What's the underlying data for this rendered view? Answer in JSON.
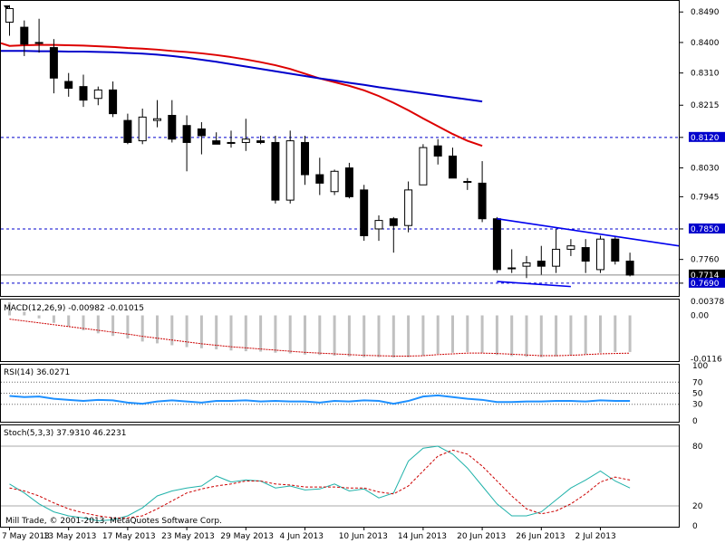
{
  "chart_data": [
    {
      "type": "candlestick",
      "panel": "price",
      "ylim": [
        0.7655,
        0.852
      ],
      "y_ticks": [
        "0.8490",
        "0.8400",
        "0.8310",
        "0.8215",
        "0.8120",
        "0.8030",
        "0.7945",
        "0.7850",
        "0.7760",
        "0.7690"
      ],
      "y_tick_values": [
        0.849,
        0.84,
        0.831,
        0.8215,
        0.812,
        0.803,
        0.7945,
        0.785,
        0.776,
        0.769
      ],
      "price_labels": [
        {
          "text": "0.8120",
          "value": 0.812,
          "color": "#0000cc"
        },
        {
          "text": "0.7850",
          "value": 0.785,
          "color": "#0000cc"
        },
        {
          "text": "0.7714",
          "value": 0.7714,
          "color": "#000000"
        },
        {
          "text": "0.7690",
          "value": 0.769,
          "color": "#0000cc"
        }
      ],
      "hlines_dashed": [
        0.812,
        0.785,
        0.769
      ],
      "hline_current": 0.7714,
      "candles": [
        {
          "o": 0.846,
          "h": 0.851,
          "l": 0.842,
          "c": 0.85
        },
        {
          "o": 0.8445,
          "h": 0.8465,
          "l": 0.836,
          "c": 0.8395
        },
        {
          "o": 0.84,
          "h": 0.847,
          "l": 0.837,
          "c": 0.84
        },
        {
          "o": 0.8385,
          "h": 0.841,
          "l": 0.825,
          "c": 0.8295
        },
        {
          "o": 0.8285,
          "h": 0.831,
          "l": 0.824,
          "c": 0.8265
        },
        {
          "o": 0.827,
          "h": 0.8305,
          "l": 0.821,
          "c": 0.823
        },
        {
          "o": 0.8235,
          "h": 0.827,
          "l": 0.8215,
          "c": 0.826
        },
        {
          "o": 0.826,
          "h": 0.8285,
          "l": 0.818,
          "c": 0.819
        },
        {
          "o": 0.817,
          "h": 0.819,
          "l": 0.81,
          "c": 0.8105
        },
        {
          "o": 0.811,
          "h": 0.8205,
          "l": 0.81,
          "c": 0.818
        },
        {
          "o": 0.817,
          "h": 0.823,
          "l": 0.815,
          "c": 0.8175
        },
        {
          "o": 0.8185,
          "h": 0.823,
          "l": 0.8105,
          "c": 0.8115
        },
        {
          "o": 0.8155,
          "h": 0.8185,
          "l": 0.802,
          "c": 0.8105
        },
        {
          "o": 0.8145,
          "h": 0.8165,
          "l": 0.807,
          "c": 0.8125
        },
        {
          "o": 0.811,
          "h": 0.8135,
          "l": 0.81,
          "c": 0.81
        },
        {
          "o": 0.8105,
          "h": 0.814,
          "l": 0.809,
          "c": 0.8105
        },
        {
          "o": 0.8105,
          "h": 0.8175,
          "l": 0.808,
          "c": 0.8115
        },
        {
          "o": 0.811,
          "h": 0.8125,
          "l": 0.81,
          "c": 0.8105
        },
        {
          "o": 0.8105,
          "h": 0.8125,
          "l": 0.7925,
          "c": 0.7935
        },
        {
          "o": 0.7935,
          "h": 0.814,
          "l": 0.7925,
          "c": 0.811
        },
        {
          "o": 0.8105,
          "h": 0.8125,
          "l": 0.798,
          "c": 0.801
        },
        {
          "o": 0.801,
          "h": 0.806,
          "l": 0.795,
          "c": 0.7985
        },
        {
          "o": 0.796,
          "h": 0.8025,
          "l": 0.795,
          "c": 0.802
        },
        {
          "o": 0.803,
          "h": 0.8045,
          "l": 0.794,
          "c": 0.7945
        },
        {
          "o": 0.7965,
          "h": 0.798,
          "l": 0.7815,
          "c": 0.783
        },
        {
          "o": 0.785,
          "h": 0.789,
          "l": 0.7815,
          "c": 0.7875
        },
        {
          "o": 0.788,
          "h": 0.7885,
          "l": 0.778,
          "c": 0.786
        },
        {
          "o": 0.786,
          "h": 0.799,
          "l": 0.784,
          "c": 0.7965
        },
        {
          "o": 0.798,
          "h": 0.81,
          "l": 0.798,
          "c": 0.809
        },
        {
          "o": 0.8095,
          "h": 0.8115,
          "l": 0.804,
          "c": 0.8065
        },
        {
          "o": 0.8065,
          "h": 0.809,
          "l": 0.8,
          "c": 0.8
        },
        {
          "o": 0.799,
          "h": 0.8,
          "l": 0.7965,
          "c": 0.799
        },
        {
          "o": 0.7985,
          "h": 0.805,
          "l": 0.787,
          "c": 0.788
        },
        {
          "o": 0.788,
          "h": 0.7885,
          "l": 0.772,
          "c": 0.773
        },
        {
          "o": 0.7735,
          "h": 0.779,
          "l": 0.772,
          "c": 0.7735
        },
        {
          "o": 0.774,
          "h": 0.777,
          "l": 0.7705,
          "c": 0.775
        },
        {
          "o": 0.7755,
          "h": 0.78,
          "l": 0.7715,
          "c": 0.774
        },
        {
          "o": 0.774,
          "h": 0.785,
          "l": 0.772,
          "c": 0.779
        },
        {
          "o": 0.779,
          "h": 0.782,
          "l": 0.777,
          "c": 0.78
        },
        {
          "o": 0.7795,
          "h": 0.782,
          "l": 0.772,
          "c": 0.7755
        },
        {
          "o": 0.773,
          "h": 0.783,
          "l": 0.772,
          "c": 0.782
        },
        {
          "o": 0.782,
          "h": 0.783,
          "l": 0.7745,
          "c": 0.7755
        },
        {
          "o": 0.7755,
          "h": 0.778,
          "l": 0.771,
          "c": 0.7714
        }
      ],
      "ma_red": [
        0.839,
        0.8392,
        0.8393,
        0.8393,
        0.8392,
        0.8391,
        0.8389,
        0.8387,
        0.8384,
        0.8382,
        0.8379,
        0.8375,
        0.8372,
        0.8368,
        0.8363,
        0.8357,
        0.835,
        0.8342,
        0.8333,
        0.8322,
        0.8308,
        0.8294,
        0.8283,
        0.8272,
        0.8259,
        0.8242,
        0.8222,
        0.82,
        0.8176,
        0.8153,
        0.813,
        0.811,
        0.8095
      ],
      "ma_red_start": 10,
      "ma_blue": [
        0.8375,
        0.8375,
        0.8374,
        0.8374,
        0.8373,
        0.8373,
        0.8372,
        0.8371,
        0.8369,
        0.8367,
        0.8364,
        0.836,
        0.8355,
        0.8349,
        0.8343,
        0.8336,
        0.8329,
        0.8322,
        0.8315,
        0.8308,
        0.8301,
        0.8294,
        0.8288,
        0.8281,
        0.8275,
        0.8268,
        0.8262,
        0.8256,
        0.825,
        0.8244,
        0.8238,
        0.8232,
        0.8226
      ],
      "ma_blue_start": 10,
      "trend_upper": {
        "x1": 33,
        "y1": 0.788,
        "x2": 49,
        "y2": 0.78
      },
      "trend_lower": {
        "x1": 33,
        "y1": 0.7695,
        "x2": 38,
        "y2": 0.768
      }
    },
    {
      "type": "bar",
      "panel": "macd",
      "title": "MACD(12,26,9) -0.00982 -0.01015",
      "ylim": [
        -0.012,
        0.004
      ],
      "y_ticks": [
        "0.00378",
        "0.00",
        "-0.0116"
      ],
      "y_tick_values": [
        0.00378,
        0.0,
        -0.0116
      ],
      "values": [
        0.0035,
        0.001,
        -0.0008,
        -0.002,
        -0.003,
        -0.004,
        -0.0048,
        -0.0055,
        -0.0062,
        -0.007,
        -0.0075,
        -0.008,
        -0.0085,
        -0.0088,
        -0.0091,
        -0.0094,
        -0.0096,
        -0.0097,
        -0.01,
        -0.0102,
        -0.0105,
        -0.0106,
        -0.0108,
        -0.011,
        -0.0112,
        -0.0112,
        -0.0113,
        -0.0112,
        -0.0108,
        -0.0103,
        -0.01,
        -0.0098,
        -0.01,
        -0.0106,
        -0.0109,
        -0.0111,
        -0.0112,
        -0.011,
        -0.0107,
        -0.0104,
        -0.01,
        -0.0098,
        -0.0098
      ],
      "signal": [
        -0.001,
        -0.0015,
        -0.002,
        -0.0025,
        -0.003,
        -0.0035,
        -0.004,
        -0.0045,
        -0.005,
        -0.0056,
        -0.0061,
        -0.0066,
        -0.0071,
        -0.0076,
        -0.008,
        -0.0084,
        -0.0087,
        -0.009,
        -0.0093,
        -0.0096,
        -0.0099,
        -0.0101,
        -0.0103,
        -0.0105,
        -0.0107,
        -0.0108,
        -0.0109,
        -0.0109,
        -0.0108,
        -0.0105,
        -0.0103,
        -0.0101,
        -0.0101,
        -0.0102,
        -0.0104,
        -0.0106,
        -0.0108,
        -0.0108,
        -0.0107,
        -0.0105,
        -0.0103,
        -0.0102,
        -0.0101
      ]
    },
    {
      "type": "line",
      "panel": "rsi",
      "title": "RSI(14) 36.0271",
      "ylim": [
        0,
        100
      ],
      "y_ticks": [
        "100",
        "70",
        "50",
        "30",
        "0"
      ],
      "y_tick_values": [
        100,
        70,
        50,
        30,
        0
      ],
      "dotted_levels": [
        70,
        50,
        30
      ],
      "values": [
        45,
        43,
        44,
        40,
        38,
        36,
        38,
        37,
        33,
        31,
        35,
        37,
        35,
        33,
        36,
        36,
        37,
        35,
        36,
        35,
        35,
        33,
        36,
        35,
        37,
        36,
        31,
        36,
        44,
        46,
        43,
        40,
        38,
        34,
        34,
        35,
        35,
        36,
        36,
        35,
        37,
        36,
        36
      ]
    },
    {
      "type": "line",
      "panel": "stoch",
      "title": "Stoch(5,3,3) 37.9310 46.2231",
      "ylim": [
        0,
        100
      ],
      "y_ticks": [
        "80",
        "20",
        "0"
      ],
      "y_tick_values": [
        80,
        20,
        0
      ],
      "solid_levels": [
        80,
        20
      ],
      "k_line": [
        42,
        33,
        22,
        14,
        10,
        8,
        5,
        6,
        10,
        18,
        30,
        35,
        38,
        40,
        50,
        44,
        46,
        45,
        38,
        40,
        36,
        37,
        42,
        35,
        37,
        28,
        33,
        65,
        78,
        80,
        72,
        58,
        40,
        22,
        10,
        10,
        14,
        26,
        38,
        46,
        55,
        45,
        38
      ],
      "d_line": [
        38,
        35,
        30,
        23,
        17,
        13,
        10,
        8,
        8,
        10,
        17,
        25,
        33,
        37,
        40,
        42,
        45,
        45,
        42,
        41,
        39,
        39,
        39,
        38,
        38,
        34,
        32,
        40,
        55,
        70,
        76,
        72,
        60,
        45,
        30,
        17,
        12,
        15,
        22,
        32,
        44,
        49,
        46
      ]
    }
  ],
  "x_axis_labels": [
    "7 May 2013",
    "13 May 2013",
    "17 May 2013",
    "23 May 2013",
    "29 May 2013",
    "4 Jun 2013",
    "10 Jun 2013",
    "14 Jun 2013",
    "20 Jun 2013",
    "26 Jun 2013",
    "2 Jul 2013"
  ],
  "x_axis_label_index": [
    0,
    4,
    8,
    12,
    16,
    20,
    24,
    28,
    32,
    36,
    40
  ],
  "footer": "Mill Trade, © 2001-2013, MetaQuotes Software Corp.",
  "colors": {
    "candle_up_fill": "#ffffff",
    "candle_down_fill": "#000000",
    "ma_red": "#dd0000",
    "ma_blue": "#0000cc",
    "trendline": "#0000ee",
    "macd_hist": "#c0c0c0",
    "macd_signal": "#cc0000",
    "rsi_line": "#1e90ff",
    "stoch_k": "#20b2aa",
    "stoch_d": "#cc0000",
    "price_label_bg": "#0000cc"
  },
  "icons": {
    "period_marker": "triangle-down-icon"
  }
}
